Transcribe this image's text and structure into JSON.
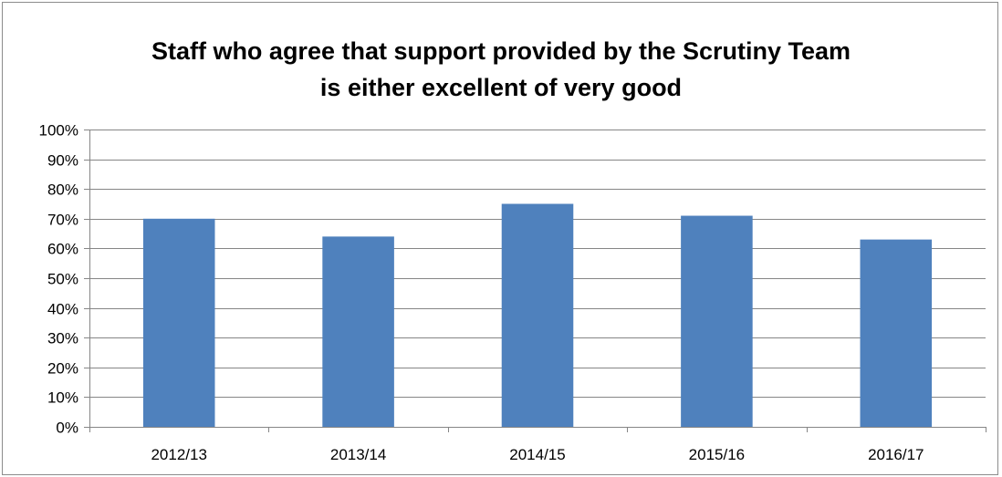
{
  "chart_data": {
    "type": "bar",
    "title_lines": [
      "Staff who agree that support provided by the Scrutiny Team",
      "is either excellent of very good"
    ],
    "categories": [
      "2012/13",
      "2013/14",
      "2014/15",
      "2015/16",
      "2016/17"
    ],
    "values": [
      70,
      64,
      75,
      71,
      63
    ],
    "unit": "%",
    "ylim": [
      0,
      100
    ],
    "ytick_step": 10,
    "ytick_labels": [
      "0%",
      "10%",
      "20%",
      "30%",
      "40%",
      "50%",
      "60%",
      "70%",
      "80%",
      "90%",
      "100%"
    ],
    "xlabel": "",
    "ylabel": "",
    "grid": true,
    "legend": "none",
    "bar_color": "#4f81bd",
    "grid_color": "#868686"
  }
}
